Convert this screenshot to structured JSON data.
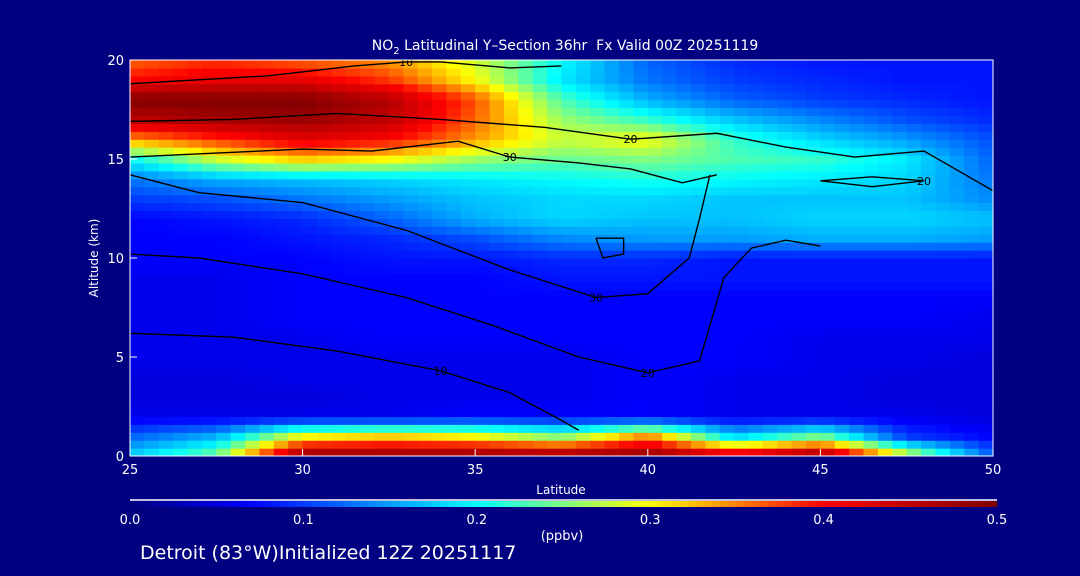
{
  "chart_data": {
    "type": "heatmap",
    "title_main": "NO",
    "title_sub": "2",
    "title_rest": " Latitudinal Y–Section 36hr  Fx Valid 00Z 20251119",
    "xlabel": "Latitude",
    "ylabel": "Altitude (km)",
    "xlim": [
      25,
      50
    ],
    "ylim": [
      0,
      20
    ],
    "xticks": [
      "25",
      "30",
      "35",
      "40",
      "45",
      "50"
    ],
    "yticks": [
      "0",
      "5",
      "10",
      "15",
      "20"
    ],
    "colorbar": {
      "label": "(ppbv)",
      "range": [
        0,
        0.5
      ],
      "ticks": [
        "0.0",
        "0.1",
        "0.2",
        "0.3",
        "0.4",
        "0.5"
      ]
    },
    "grid_lat": [
      25,
      27.5,
      30,
      32.5,
      35,
      37.5,
      40,
      42.5,
      45,
      47.5,
      50
    ],
    "grid_alt": [
      0,
      1,
      2,
      3,
      4,
      5,
      6,
      7,
      8,
      9,
      10,
      11,
      12,
      13,
      14,
      15,
      16,
      17,
      18,
      19,
      20
    ],
    "values": [
      [
        0.18,
        0.25,
        0.5,
        0.5,
        0.5,
        0.5,
        0.5,
        0.45,
        0.5,
        0.3,
        0.12
      ],
      [
        0.12,
        0.16,
        0.3,
        0.32,
        0.3,
        0.25,
        0.35,
        0.18,
        0.25,
        0.1,
        0.07
      ],
      [
        0.06,
        0.06,
        0.06,
        0.06,
        0.07,
        0.07,
        0.07,
        0.06,
        0.06,
        0.06,
        0.05
      ],
      [
        0.05,
        0.05,
        0.05,
        0.06,
        0.06,
        0.06,
        0.07,
        0.06,
        0.06,
        0.05,
        0.05
      ],
      [
        0.05,
        0.05,
        0.06,
        0.06,
        0.06,
        0.06,
        0.07,
        0.06,
        0.06,
        0.05,
        0.05
      ],
      [
        0.06,
        0.06,
        0.06,
        0.06,
        0.06,
        0.06,
        0.07,
        0.07,
        0.06,
        0.06,
        0.05
      ],
      [
        0.06,
        0.06,
        0.06,
        0.07,
        0.07,
        0.07,
        0.07,
        0.07,
        0.06,
        0.06,
        0.06
      ],
      [
        0.06,
        0.06,
        0.07,
        0.07,
        0.07,
        0.07,
        0.07,
        0.07,
        0.07,
        0.07,
        0.06
      ],
      [
        0.06,
        0.06,
        0.07,
        0.07,
        0.07,
        0.07,
        0.07,
        0.07,
        0.07,
        0.07,
        0.07
      ],
      [
        0.06,
        0.06,
        0.07,
        0.07,
        0.07,
        0.08,
        0.08,
        0.08,
        0.08,
        0.08,
        0.08
      ],
      [
        0.07,
        0.07,
        0.07,
        0.08,
        0.08,
        0.09,
        0.09,
        0.08,
        0.08,
        0.08,
        0.08
      ],
      [
        0.07,
        0.07,
        0.08,
        0.09,
        0.11,
        0.14,
        0.15,
        0.15,
        0.16,
        0.16,
        0.15
      ],
      [
        0.07,
        0.08,
        0.09,
        0.12,
        0.16,
        0.18,
        0.17,
        0.17,
        0.18,
        0.18,
        0.17
      ],
      [
        0.1,
        0.11,
        0.13,
        0.15,
        0.17,
        0.18,
        0.18,
        0.17,
        0.17,
        0.17,
        0.14
      ],
      [
        0.13,
        0.16,
        0.17,
        0.18,
        0.19,
        0.2,
        0.21,
        0.2,
        0.19,
        0.18,
        0.13
      ],
      [
        0.2,
        0.28,
        0.32,
        0.3,
        0.26,
        0.24,
        0.25,
        0.23,
        0.22,
        0.19,
        0.12
      ],
      [
        0.34,
        0.38,
        0.42,
        0.4,
        0.34,
        0.28,
        0.3,
        0.22,
        0.18,
        0.15,
        0.11
      ],
      [
        0.45,
        0.47,
        0.48,
        0.45,
        0.36,
        0.26,
        0.22,
        0.17,
        0.14,
        0.11,
        0.09
      ],
      [
        0.5,
        0.5,
        0.5,
        0.46,
        0.37,
        0.23,
        0.16,
        0.12,
        0.1,
        0.09,
        0.08
      ],
      [
        0.4,
        0.42,
        0.42,
        0.38,
        0.3,
        0.19,
        0.13,
        0.1,
        0.09,
        0.08,
        0.08
      ],
      [
        0.36,
        0.38,
        0.36,
        0.34,
        0.28,
        0.2,
        0.12,
        0.09,
        0.08,
        0.08,
        0.08
      ]
    ],
    "contours": [
      {
        "level": "10",
        "points": [
          [
            25,
            6.2
          ],
          [
            28,
            6
          ],
          [
            31,
            5.3
          ],
          [
            34,
            4.3
          ],
          [
            36,
            3.2
          ],
          [
            37.5,
            1.8
          ],
          [
            38,
            1.3
          ]
        ]
      },
      {
        "level": "20",
        "points": [
          [
            25,
            10.2
          ],
          [
            27,
            10
          ],
          [
            30,
            9.2
          ],
          [
            33,
            8
          ],
          [
            35.5,
            6.6
          ],
          [
            38,
            5
          ],
          [
            40,
            4.2
          ],
          [
            41.5,
            4.8
          ],
          [
            42.2,
            9
          ],
          [
            43,
            10.5
          ],
          [
            44,
            10.9
          ],
          [
            45,
            10.6
          ]
        ]
      },
      {
        "level": "30",
        "points": [
          [
            25,
            14.2
          ],
          [
            27,
            13.3
          ],
          [
            30,
            12.8
          ],
          [
            33,
            11.4
          ],
          [
            36,
            9.4
          ],
          [
            38.5,
            8
          ],
          [
            40,
            8.2
          ],
          [
            41.2,
            10
          ],
          [
            41.5,
            12
          ],
          [
            41.8,
            14.2
          ]
        ]
      },
      {
        "level": "30",
        "points": [
          [
            25,
            15.1
          ],
          [
            27.5,
            15.3
          ],
          [
            30,
            15.5
          ],
          [
            32,
            15.4
          ],
          [
            34.5,
            15.9
          ],
          [
            36,
            15.1
          ],
          [
            38,
            14.8
          ],
          [
            39.5,
            14.5
          ],
          [
            41,
            13.8
          ],
          [
            42,
            14.2
          ]
        ]
      },
      {
        "level": "20",
        "points": [
          [
            25,
            16.9
          ],
          [
            28,
            17
          ],
          [
            31,
            17.3
          ],
          [
            34,
            17
          ],
          [
            37,
            16.6
          ],
          [
            39.5,
            16
          ],
          [
            42,
            16.3
          ],
          [
            44,
            15.6
          ],
          [
            46,
            15.1
          ],
          [
            48,
            15.4
          ],
          [
            50,
            13.4
          ]
        ]
      },
      {
        "level": "10",
        "points": [
          [
            25,
            18.8
          ],
          [
            29,
            19.2
          ],
          [
            31.5,
            19.7
          ],
          [
            33,
            19.9
          ],
          [
            34,
            19.9
          ],
          [
            36,
            19.6
          ],
          [
            37.5,
            19.7
          ]
        ]
      },
      {
        "level": "20",
        "points": [
          [
            45,
            13.9
          ],
          [
            46.5,
            13.6
          ],
          [
            48,
            13.9
          ],
          [
            46.5,
            14.1
          ],
          [
            45,
            13.9
          ]
        ]
      },
      {
        "level": "",
        "points": [
          [
            38.5,
            11
          ],
          [
            39.3,
            11
          ],
          [
            39.3,
            10.2
          ],
          [
            38.7,
            10
          ],
          [
            38.5,
            11
          ]
        ]
      }
    ]
  },
  "footer": {
    "note": "Detroit (83°W)Initialized 12Z 20251117"
  }
}
